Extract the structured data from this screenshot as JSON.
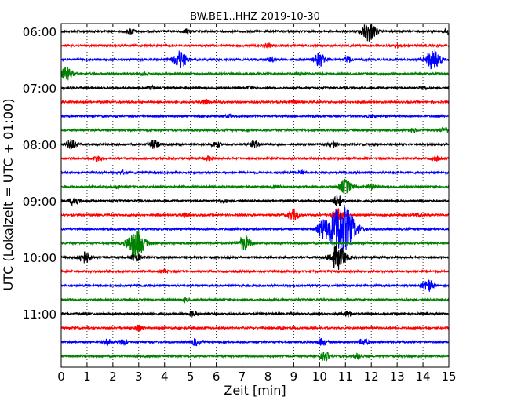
{
  "chart_data": {
    "type": "line",
    "title": "BW.BE1..HHZ 2019-10-30",
    "xlabel": "Zeit  [min]",
    "ylabel": "UTC (Lokalzeit = UTC + 01:00)",
    "xlim": [
      0,
      15
    ],
    "x_ticks": [
      "0",
      "1",
      "2",
      "3",
      "4",
      "5",
      "6",
      "7",
      "8",
      "9",
      "10",
      "11",
      "12",
      "13",
      "14",
      "15"
    ],
    "y_ticks": [
      "06:00",
      "07:00",
      "08:00",
      "09:00",
      "10:00",
      "11:00"
    ],
    "grid": "vertical dotted at each minute",
    "trace_colors": [
      "#000000",
      "#ff0000",
      "#0000ff",
      "#008000"
    ],
    "trace_color_order": "repeats black, red, blue, green for each 15-minute line",
    "traces": [
      {
        "label": "06:00",
        "color": "#000000",
        "events": [
          {
            "x": 2.7,
            "amp": 0.5
          },
          {
            "x": 4.9,
            "amp": 0.4
          },
          {
            "x": 11.9,
            "amp": 1.8
          },
          {
            "x": 15.0,
            "amp": 0.6
          }
        ]
      },
      {
        "label": "06:15",
        "color": "#ff0000",
        "events": [
          {
            "x": 8.0,
            "amp": 0.3
          },
          {
            "x": 13.0,
            "amp": 0.3
          }
        ]
      },
      {
        "label": "06:30",
        "color": "#0000ff",
        "events": [
          {
            "x": 4.6,
            "amp": 1.6
          },
          {
            "x": 8.1,
            "amp": 0.4
          },
          {
            "x": 10.0,
            "amp": 1.2
          },
          {
            "x": 11.1,
            "amp": 0.5
          },
          {
            "x": 14.4,
            "amp": 1.8
          }
        ]
      },
      {
        "label": "06:45",
        "color": "#008000",
        "events": [
          {
            "x": 0.2,
            "amp": 1.2
          },
          {
            "x": 3.2,
            "amp": 0.3
          },
          {
            "x": 9.2,
            "amp": 0.3
          }
        ]
      },
      {
        "label": "07:00",
        "color": "#000000",
        "events": [
          {
            "x": 3.5,
            "amp": 0.3
          },
          {
            "x": 7.3,
            "amp": 0.3
          },
          {
            "x": 14.0,
            "amp": 0.3
          }
        ]
      },
      {
        "label": "07:15",
        "color": "#ff0000",
        "events": [
          {
            "x": 5.6,
            "amp": 0.5
          },
          {
            "x": 9.0,
            "amp": 0.3
          }
        ]
      },
      {
        "label": "07:30",
        "color": "#0000ff",
        "events": [
          {
            "x": 6.5,
            "amp": 0.3
          },
          {
            "x": 12.0,
            "amp": 0.3
          }
        ]
      },
      {
        "label": "07:45",
        "color": "#008000",
        "events": [
          {
            "x": 13.6,
            "amp": 0.4
          },
          {
            "x": 14.8,
            "amp": 0.5
          }
        ]
      },
      {
        "label": "08:00",
        "color": "#000000",
        "events": [
          {
            "x": 0.4,
            "amp": 0.9
          },
          {
            "x": 3.6,
            "amp": 0.8
          },
          {
            "x": 6.0,
            "amp": 0.5
          },
          {
            "x": 7.5,
            "amp": 0.6
          },
          {
            "x": 10.5,
            "amp": 0.5
          }
        ]
      },
      {
        "label": "08:15",
        "color": "#ff0000",
        "events": [
          {
            "x": 1.4,
            "amp": 0.5
          },
          {
            "x": 5.7,
            "amp": 0.4
          },
          {
            "x": 14.5,
            "amp": 0.4
          }
        ]
      },
      {
        "label": "08:30",
        "color": "#0000ff",
        "events": [
          {
            "x": 2.4,
            "amp": 0.3
          },
          {
            "x": 9.3,
            "amp": 0.3
          }
        ]
      },
      {
        "label": "08:45",
        "color": "#008000",
        "events": [
          {
            "x": 2.2,
            "amp": 0.3
          },
          {
            "x": 8.3,
            "amp": 0.3
          },
          {
            "x": 11.0,
            "amp": 1.3
          },
          {
            "x": 12.0,
            "amp": 0.5
          }
        ]
      },
      {
        "label": "09:00",
        "color": "#000000",
        "events": [
          {
            "x": 0.5,
            "amp": 0.8
          },
          {
            "x": 6.3,
            "amp": 0.3
          },
          {
            "x": 10.7,
            "amp": 1.0
          }
        ]
      },
      {
        "label": "09:15",
        "color": "#ff0000",
        "events": [
          {
            "x": 4.8,
            "amp": 0.3
          },
          {
            "x": 9.0,
            "amp": 1.0
          },
          {
            "x": 10.7,
            "amp": 1.1
          },
          {
            "x": 13.8,
            "amp": 0.3
          }
        ]
      },
      {
        "label": "09:30",
        "color": "#0000ff",
        "events": [
          {
            "x": 10.1,
            "amp": 1.2
          },
          {
            "x": 10.85,
            "amp": 4.5
          }
        ]
      },
      {
        "label": "09:45",
        "color": "#008000",
        "events": [
          {
            "x": 2.9,
            "amp": 2.5
          },
          {
            "x": 7.1,
            "amp": 1.3
          }
        ]
      },
      {
        "label": "10:00",
        "color": "#000000",
        "events": [
          {
            "x": 0.9,
            "amp": 1.1
          },
          {
            "x": 2.9,
            "amp": 0.7
          },
          {
            "x": 10.7,
            "amp": 2.2
          }
        ]
      },
      {
        "label": "10:15",
        "color": "#ff0000",
        "events": [
          {
            "x": 4.0,
            "amp": 0.3
          }
        ]
      },
      {
        "label": "10:30",
        "color": "#0000ff",
        "events": [
          {
            "x": 14.2,
            "amp": 1.1
          }
        ]
      },
      {
        "label": "10:45",
        "color": "#008000",
        "events": [
          {
            "x": 4.8,
            "amp": 0.3
          }
        ]
      },
      {
        "label": "11:00",
        "color": "#000000",
        "events": [
          {
            "x": 5.1,
            "amp": 0.5
          },
          {
            "x": 11.1,
            "amp": 0.5
          }
        ]
      },
      {
        "label": "11:15",
        "color": "#ff0000",
        "events": [
          {
            "x": 3.0,
            "amp": 0.5
          },
          {
            "x": 8.5,
            "amp": 0.3
          }
        ]
      },
      {
        "label": "11:30",
        "color": "#0000ff",
        "events": [
          {
            "x": 1.8,
            "amp": 0.5
          },
          {
            "x": 2.4,
            "amp": 0.5
          },
          {
            "x": 5.2,
            "amp": 0.6
          },
          {
            "x": 10.1,
            "amp": 0.6
          },
          {
            "x": 11.7,
            "amp": 0.6
          }
        ]
      },
      {
        "label": "11:45",
        "color": "#008000",
        "events": [
          {
            "x": 10.2,
            "amp": 0.8
          },
          {
            "x": 11.5,
            "amp": 0.5
          }
        ]
      }
    ]
  }
}
